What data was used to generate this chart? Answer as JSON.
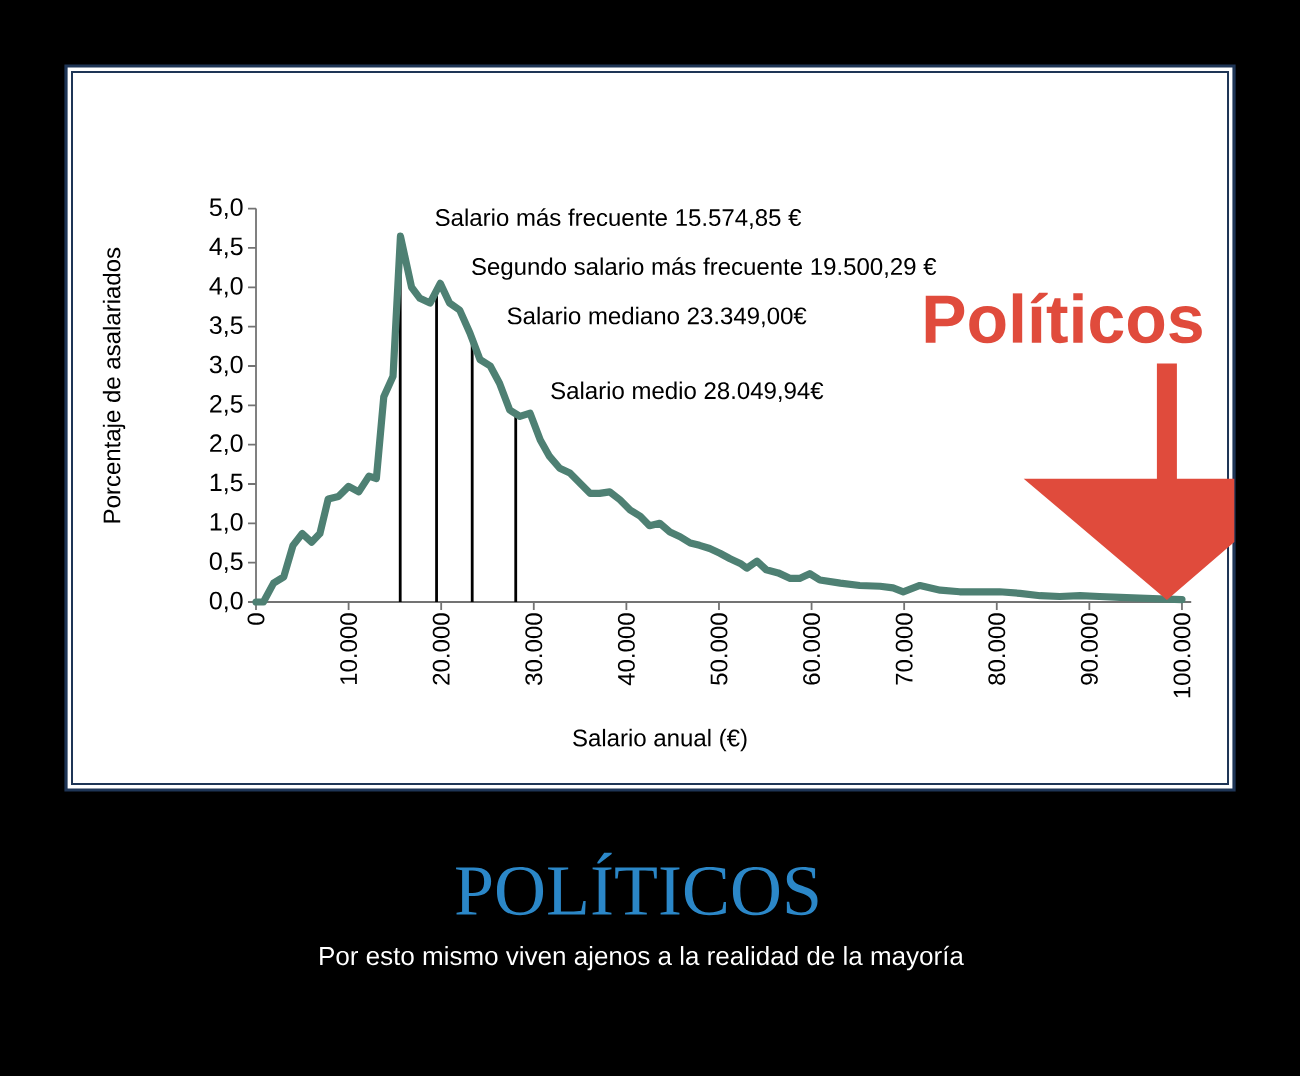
{
  "chart_data": {
    "type": "line",
    "title": "POLÍTICOS",
    "subtitle": "Por esto mismo viven ajenos a la realidad de la mayoría",
    "xlabel": "Salario anual (€)",
    "ylabel": "Porcentaje de asalariados",
    "x": [
      0,
      800,
      1900,
      3000,
      4000,
      5000,
      6000,
      6900,
      7800,
      8900,
      10000,
      11100,
      12200,
      13000,
      13800,
      14800,
      15600,
      16800,
      17700,
      18800,
      19900,
      20900,
      22000,
      23100,
      24200,
      25300,
      26300,
      27400,
      28500,
      29600,
      30700,
      31700,
      32800,
      33900,
      35000,
      36100,
      37100,
      38200,
      39300,
      40400,
      41500,
      42500,
      43600,
      44700,
      45800,
      46900,
      47900,
      49000,
      50100,
      51200,
      52300,
      53000,
      54100,
      55100,
      56400,
      57700,
      58700,
      59800,
      60900,
      63100,
      65200,
      67400,
      68800,
      69900,
      71700,
      73900,
      76000,
      78200,
      80300,
      82500,
      84700,
      86800,
      89000,
      91100,
      93300,
      95400,
      97600,
      100000
    ],
    "series": [
      {
        "color": "#4e8073",
        "values": [
          0,
          0,
          0.24,
          0.32,
          0.72,
          0.87,
          0.76,
          0.87,
          1.31,
          1.34,
          1.47,
          1.4,
          1.6,
          1.57,
          2.61,
          2.87,
          4.65,
          4.0,
          3.86,
          3.8,
          4.05,
          3.8,
          3.71,
          3.42,
          3.08,
          3.0,
          2.78,
          2.44,
          2.36,
          2.4,
          2.06,
          1.85,
          1.7,
          1.64,
          1.51,
          1.38,
          1.38,
          1.4,
          1.3,
          1.17,
          1.09,
          0.97,
          1.0,
          0.89,
          0.83,
          0.75,
          0.72,
          0.68,
          0.62,
          0.55,
          0.49,
          0.43,
          0.52,
          0.41,
          0.37,
          0.3,
          0.3,
          0.36,
          0.28,
          0.24,
          0.21,
          0.2,
          0.18,
          0.13,
          0.21,
          0.15,
          0.13,
          0.13,
          0.13,
          0.11,
          0.08,
          0.07,
          0.08,
          0.07,
          0.06,
          0.05,
          0.04,
          0.03
        ]
      }
    ],
    "xlim": [
      0,
      101000
    ],
    "ylim": [
      0,
      5.0
    ],
    "xticks": [
      0,
      {
        "value": 10000,
        "label": "10.000"
      },
      {
        "value": 20000,
        "label": "20.000"
      },
      {
        "value": 30000,
        "label": "30.000"
      },
      {
        "value": 40000,
        "label": "40.000"
      },
      {
        "value": 50000,
        "label": "50.000"
      },
      {
        "value": 60000,
        "label": "60.000"
      },
      {
        "value": 70000,
        "label": "70.000"
      },
      {
        "value": 80000,
        "label": "80.000"
      },
      {
        "value": 90000,
        "label": "90.000"
      },
      {
        "value": 100000,
        "label": "100.000"
      }
    ],
    "yticks": [
      {
        "value": 0,
        "label": "0,0"
      },
      {
        "value": 0.5,
        "label": "0,5"
      },
      {
        "value": 1.0,
        "label": "1,0"
      },
      {
        "value": 1.5,
        "label": "1,5"
      },
      {
        "value": 2.0,
        "label": "2,0"
      },
      {
        "value": 2.5,
        "label": "2,5"
      },
      {
        "value": 3.0,
        "label": "3,0"
      },
      {
        "value": 3.5,
        "label": "3,5"
      },
      {
        "value": 4.0,
        "label": "4,0"
      },
      {
        "value": 4.5,
        "label": "4,5"
      },
      {
        "value": 5.0,
        "label": "5,0"
      }
    ],
    "ref_lines": [
      {
        "axis": "x",
        "value": 15574.85,
        "label": "Salario más frecuente 15.574,85 €",
        "color": "#000000"
      },
      {
        "axis": "x",
        "value": 19500.29,
        "label": "Segundo salario más frecuente 19.500,29 €",
        "color": "#000000"
      },
      {
        "axis": "x",
        "value": 23349,
        "label": "Salario mediano 23.349,00€",
        "color": "#000000"
      },
      {
        "axis": "x",
        "value": 28049.94,
        "label": "Salario medio 28.049,94€",
        "color": "#000000"
      }
    ],
    "annotations": [
      "Políticos"
    ]
  }
}
